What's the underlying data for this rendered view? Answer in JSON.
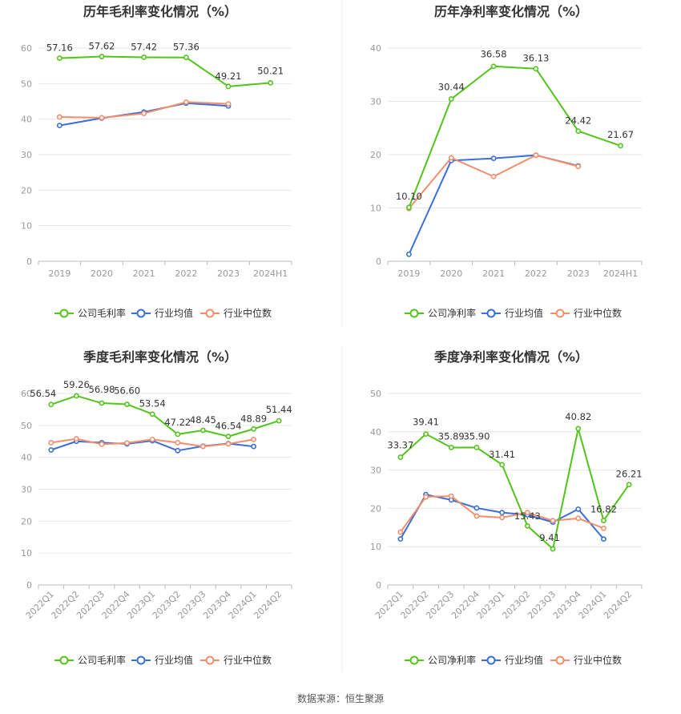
{
  "source_note": "数据来源：恒生聚源",
  "colors": {
    "company": "#52c41a",
    "industry_avg": "#3a6fd8",
    "industry_median": "#f28e6b",
    "grid": "#e6e6e6",
    "axis": "#bbbbbb"
  },
  "chart_data": [
    {
      "type": "line",
      "title": "历年毛利率变化情况（%）",
      "categories": [
        "2019",
        "2020",
        "2021",
        "2022",
        "2023",
        "2024H1"
      ],
      "ylim": [
        0,
        60
      ],
      "yticks": [
        0,
        10,
        20,
        30,
        40,
        50,
        60
      ],
      "series": [
        {
          "name": "公司毛利率",
          "role": "company",
          "values": [
            57.16,
            57.62,
            57.42,
            57.36,
            49.21,
            50.21
          ],
          "labels": [
            "57.16",
            "57.62",
            "57.42",
            "57.36",
            "49.21",
            "50.21"
          ]
        },
        {
          "name": "行业均值",
          "role": "industry_avg",
          "values": [
            38.2,
            40.3,
            42.0,
            44.5,
            43.7,
            null
          ]
        },
        {
          "name": "行业中位数",
          "role": "industry_median",
          "values": [
            40.6,
            40.4,
            41.6,
            44.8,
            44.3,
            null
          ]
        }
      ]
    },
    {
      "type": "line",
      "title": "历年净利率变化情况（%）",
      "categories": [
        "2019",
        "2020",
        "2021",
        "2022",
        "2023",
        "2024H1"
      ],
      "ylim": [
        0,
        40
      ],
      "yticks": [
        0,
        10,
        20,
        30,
        40
      ],
      "series": [
        {
          "name": "公司净利率",
          "role": "company",
          "values": [
            10.1,
            30.44,
            36.58,
            36.13,
            24.42,
            21.67
          ],
          "labels": [
            "10.10",
            "30.44",
            "36.58",
            "36.13",
            "24.42",
            "21.67"
          ]
        },
        {
          "name": "行业均值",
          "role": "industry_avg",
          "values": [
            1.3,
            18.9,
            19.3,
            19.9,
            17.9,
            null
          ]
        },
        {
          "name": "行业中位数",
          "role": "industry_median",
          "values": [
            9.9,
            19.4,
            15.9,
            19.9,
            17.8,
            null
          ]
        }
      ]
    },
    {
      "type": "line",
      "title": "季度毛利率变化情况（%）",
      "categories": [
        "2022Q1",
        "2022Q2",
        "2022Q3",
        "2022Q4",
        "2023Q1",
        "2023Q2",
        "2023Q3",
        "2023Q4",
        "2024Q1",
        "2024Q2"
      ],
      "ylim": [
        0,
        60
      ],
      "yticks": [
        0,
        10,
        20,
        30,
        40,
        50,
        60
      ],
      "series": [
        {
          "name": "公司毛利率",
          "role": "company",
          "values": [
            56.54,
            59.26,
            56.98,
            56.6,
            53.54,
            47.22,
            48.45,
            46.54,
            48.89,
            51.44
          ],
          "labels": [
            "56.54",
            "59.26",
            "56.98",
            "56.60",
            "53.54",
            "47.22",
            "48.45",
            "46.54",
            "48.89",
            "51.44"
          ]
        },
        {
          "name": "行业均值",
          "role": "industry_avg",
          "values": [
            42.3,
            45.0,
            44.6,
            44.2,
            45.2,
            42.1,
            43.5,
            44.3,
            43.4,
            null
          ]
        },
        {
          "name": "行业中位数",
          "role": "industry_median",
          "values": [
            44.6,
            45.8,
            44.1,
            44.5,
            45.6,
            44.6,
            43.4,
            44.2,
            45.6,
            null
          ]
        }
      ]
    },
    {
      "type": "line",
      "title": "季度净利率变化情况（%）",
      "categories": [
        "2022Q1",
        "2022Q2",
        "2022Q3",
        "2022Q4",
        "2023Q1",
        "2023Q2",
        "2023Q3",
        "2023Q4",
        "2024Q1",
        "2024Q2"
      ],
      "ylim": [
        0,
        50
      ],
      "yticks": [
        0,
        10,
        20,
        30,
        40,
        50
      ],
      "series": [
        {
          "name": "公司净利率",
          "role": "company",
          "values": [
            33.37,
            39.41,
            35.89,
            35.9,
            31.41,
            15.43,
            9.41,
            40.82,
            16.82,
            26.21
          ],
          "labels": [
            "33.37",
            "39.41",
            "35.89",
            "35.90",
            "31.41",
            "15.43",
            "9.41",
            "40.82",
            "16.82",
            "26.21"
          ]
        },
        {
          "name": "行业均值",
          "role": "industry_avg",
          "values": [
            12.0,
            23.6,
            22.2,
            20.1,
            18.9,
            18.3,
            16.4,
            19.8,
            12.0,
            null
          ]
        },
        {
          "name": "行业中位数",
          "role": "industry_median",
          "values": [
            13.8,
            23.0,
            23.2,
            18.0,
            17.6,
            18.9,
            16.8,
            17.4,
            14.8,
            null
          ]
        }
      ]
    }
  ]
}
